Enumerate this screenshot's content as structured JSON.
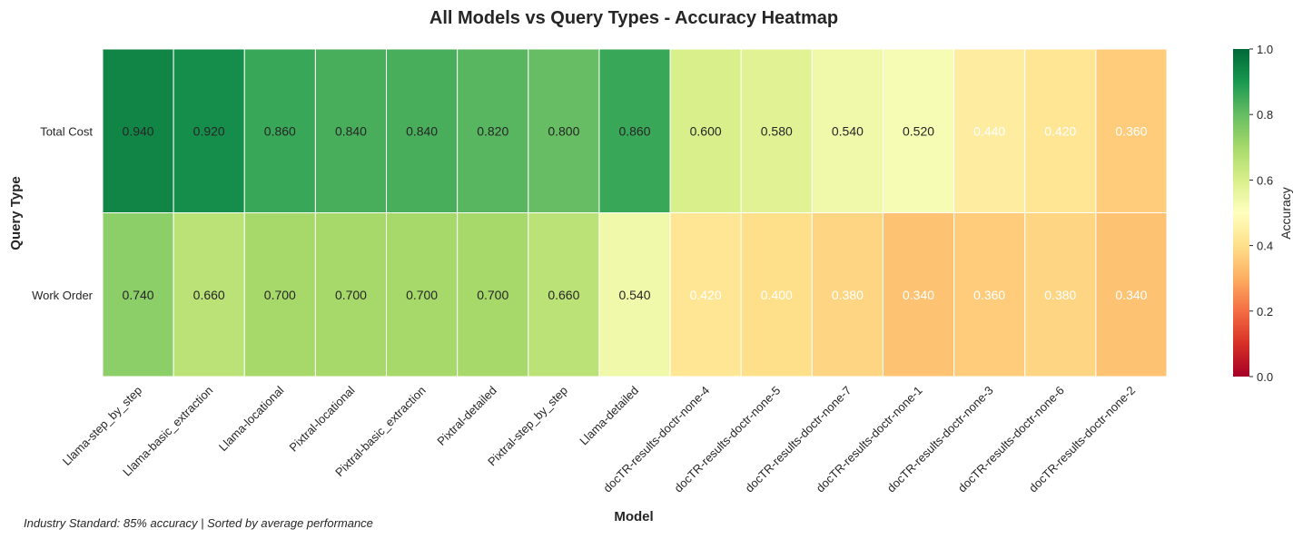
{
  "chart_data": {
    "type": "heatmap",
    "title": "All Models vs Query Types - Accuracy Heatmap",
    "xlabel": "Model",
    "ylabel": "Query Type",
    "x_categories": [
      "Llama-step_by_step",
      "Llama-basic_extraction",
      "Llama-locational",
      "Pixtral-locational",
      "Pixtral-basic_extraction",
      "Pixtral-detailed",
      "Pixtral-step_by_step",
      "Llama-detailed",
      "docTR-results-doctr-none-4",
      "docTR-results-doctr-none-5",
      "docTR-results-doctr-none-7",
      "docTR-results-doctr-none-1",
      "docTR-results-doctr-none-3",
      "docTR-results-doctr-none-6",
      "docTR-results-doctr-none-2"
    ],
    "y_categories": [
      "Total Cost",
      "Work Order"
    ],
    "values": [
      [
        0.94,
        0.92,
        0.86,
        0.84,
        0.84,
        0.82,
        0.8,
        0.86,
        0.6,
        0.58,
        0.54,
        0.52,
        0.44,
        0.42,
        0.36
      ],
      [
        0.74,
        0.66,
        0.7,
        0.7,
        0.7,
        0.7,
        0.66,
        0.54,
        0.42,
        0.4,
        0.38,
        0.34,
        0.36,
        0.38,
        0.34
      ]
    ],
    "value_format": "0.000",
    "colorbar": {
      "label": "Accuracy",
      "range": [
        0.0,
        1.0
      ],
      "ticks": [
        "0.0",
        "0.2",
        "0.4",
        "0.6",
        "0.8",
        "1.0"
      ],
      "colormap": "RdYlGn"
    },
    "annotation": "Industry Standard: 85% accuracy | Sorted by average performance"
  }
}
